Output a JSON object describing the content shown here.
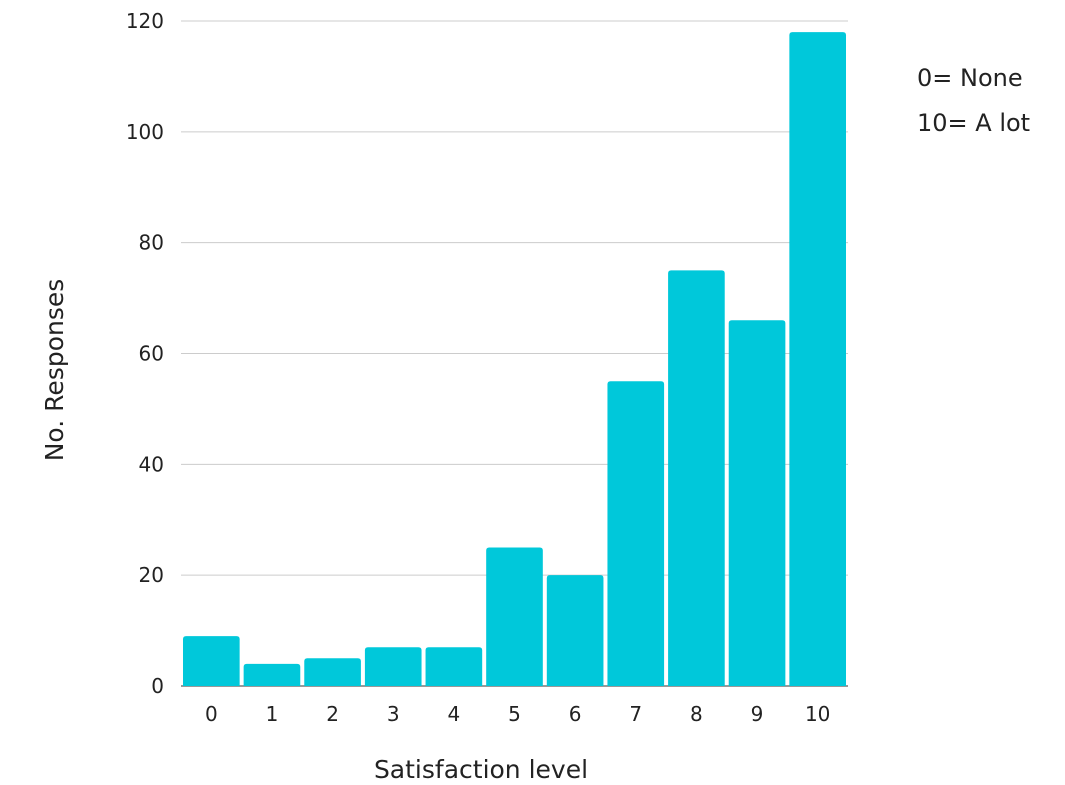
{
  "chart_data": {
    "type": "bar",
    "categories": [
      "0",
      "1",
      "2",
      "3",
      "4",
      "5",
      "6",
      "7",
      "8",
      "9",
      "10"
    ],
    "values": [
      9,
      4,
      5,
      7,
      7,
      25,
      20,
      55,
      75,
      66,
      118
    ],
    "xlabel": "Satisfaction level",
    "ylabel": "No. Responses",
    "ylim": [
      0,
      120
    ],
    "yticks": [
      0,
      20,
      40,
      60,
      80,
      100,
      120
    ],
    "grid": true,
    "legend": "none",
    "bar_color": "#00C8DA",
    "annotations": [
      "0= None",
      "10= A lot"
    ]
  }
}
